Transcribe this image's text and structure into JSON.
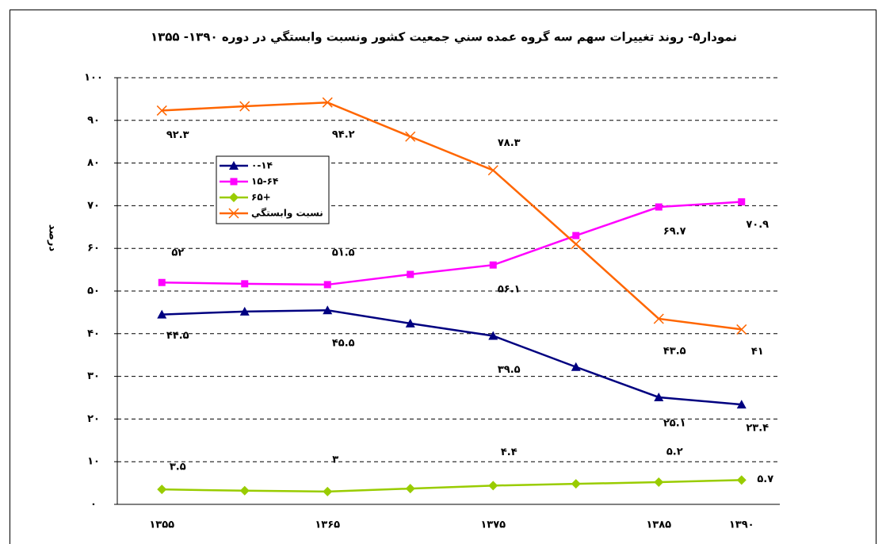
{
  "chart_data": {
    "type": "line",
    "title": "نمودار۵- روند تغییرات سهم سه گروه عمده سني جمعيت كشور ونسبت وابستگي در دوره ۱۳۹۰- ۱۳۵۵",
    "y_label": "درصد",
    "categories": [
      "۱۳۵۵",
      null,
      "۱۳۶۵",
      null,
      "۱۳۷۵",
      null,
      "۱۳۸۵",
      "۱۳۹۰"
    ],
    "ylim": [
      0,
      100
    ],
    "yticks": [
      {
        "value": 0,
        "label": "۰"
      },
      {
        "value": 10,
        "label": "۱۰"
      },
      {
        "value": 20,
        "label": "۲۰"
      },
      {
        "value": 30,
        "label": "۳۰"
      },
      {
        "value": 40,
        "label": "۴۰"
      },
      {
        "value": 50,
        "label": "۵۰"
      },
      {
        "value": 60,
        "label": "۶۰"
      },
      {
        "value": 70,
        "label": "۷۰"
      },
      {
        "value": 80,
        "label": "۸۰"
      },
      {
        "value": 90,
        "label": "۹۰"
      },
      {
        "value": 100,
        "label": "۱۰۰"
      }
    ],
    "grid": true,
    "legend": "upper left",
    "series": [
      {
        "name": "۰-۱۴",
        "color": "#000080",
        "marker": "triangle",
        "values": [
          44.5,
          45.2,
          45.5,
          42.4,
          39.5,
          32.2,
          25.1,
          23.4
        ],
        "value_labels": [
          "۴۴.۵",
          null,
          "۴۵.۵",
          null,
          "۳۹.۵",
          null,
          "۲۵.۱",
          "۲۳.۴"
        ]
      },
      {
        "name": "۱۵-۶۴",
        "color": "#ff00ff",
        "marker": "square",
        "values": [
          52,
          51.7,
          51.5,
          53.9,
          56.1,
          63,
          69.7,
          70.9
        ],
        "value_labels": [
          "۵۲",
          null,
          "۵۱.۵",
          null,
          "۵۶.۱",
          null,
          "۶۹.۷",
          "۷۰.۹"
        ]
      },
      {
        "name": "۶۵+",
        "color": "#99cc00",
        "marker": "diamond",
        "values": [
          3.5,
          3.2,
          3,
          3.7,
          4.4,
          4.8,
          5.2,
          5.7
        ],
        "value_labels": [
          "۳.۵",
          null,
          "۳",
          null,
          "۴.۴",
          null,
          "۵.۲",
          "۵.۷"
        ]
      },
      {
        "name": "نسبت وابستگي",
        "color": "#ff6600",
        "marker": "x",
        "values": [
          92.3,
          93.3,
          94.2,
          86.2,
          78.3,
          61,
          43.5,
          41
        ],
        "value_labels": [
          "۹۲.۳",
          null,
          "۹۴.۲",
          null,
          "۷۸.۳",
          null,
          "۴۳.۵",
          "۴۱"
        ]
      }
    ]
  }
}
